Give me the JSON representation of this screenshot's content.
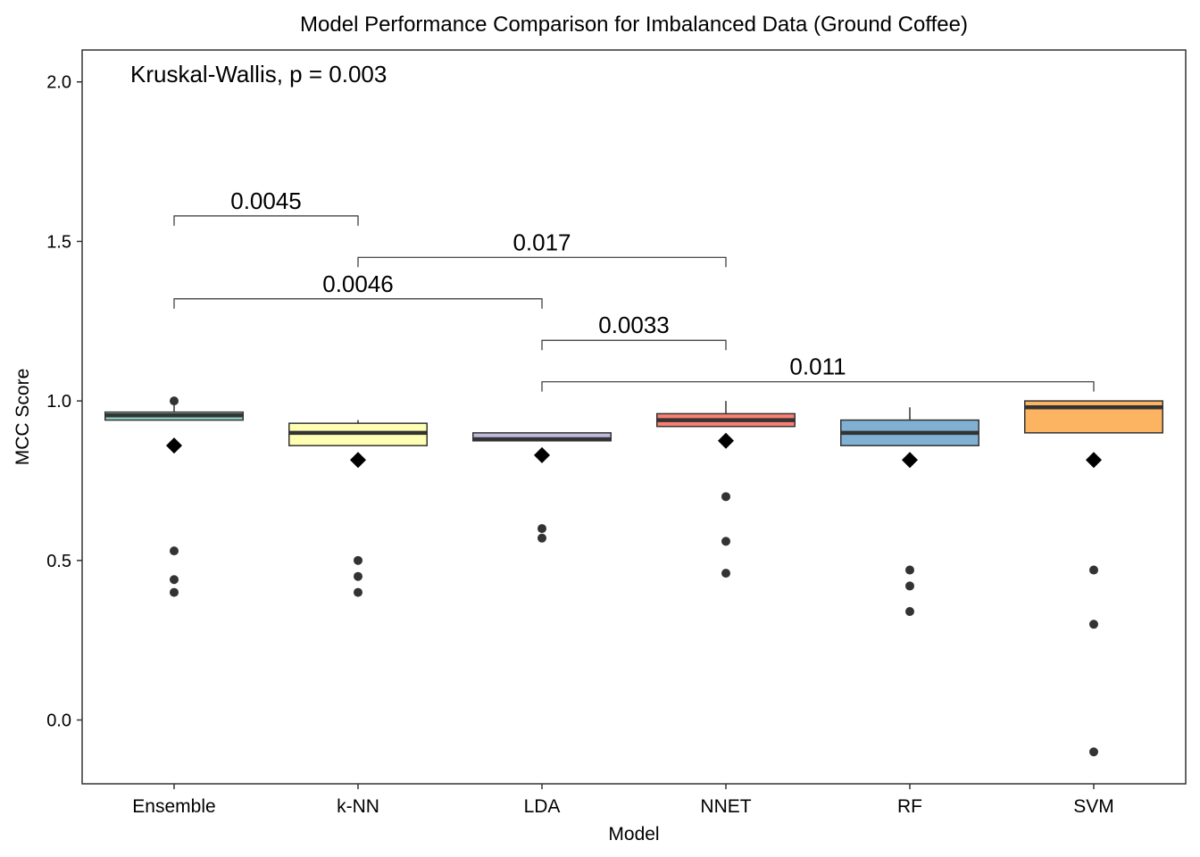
{
  "chart_data": {
    "type": "box",
    "title": "Model Performance Comparison for Imbalanced Data (Ground Coffee)",
    "xlabel": "Model",
    "ylabel": "MCC Score",
    "ylim": [
      -0.2,
      2.1
    ],
    "yticks": [
      0.0,
      0.5,
      1.0,
      1.5,
      2.0
    ],
    "ytick_labels": [
      "0.0",
      "0.5",
      "1.0",
      "1.5",
      "2.0"
    ],
    "grid": false,
    "legend": "none",
    "annotation": "Kruskal-Wallis, p = 0.003",
    "categories": [
      "Ensemble",
      "k-NN",
      "LDA",
      "NNET",
      "RF",
      "SVM"
    ],
    "boxes": [
      {
        "category": "Ensemble",
        "color": "#8DD3C7",
        "whisker_low": 0.94,
        "q1": 0.94,
        "median": 0.955,
        "q3": 0.965,
        "whisker_high": 1.0,
        "mean": 0.86,
        "outliers": [
          1.0,
          0.53,
          0.44,
          0.4
        ]
      },
      {
        "category": "k-NN",
        "color": "#FFFFB3",
        "whisker_low": 0.86,
        "q1": 0.86,
        "median": 0.9,
        "q3": 0.93,
        "whisker_high": 0.94,
        "mean": 0.815,
        "outliers": [
          0.5,
          0.45,
          0.4
        ]
      },
      {
        "category": "LDA",
        "color": "#BEBADA",
        "whisker_low": 0.875,
        "q1": 0.875,
        "median": 0.88,
        "q3": 0.9,
        "whisker_high": 0.9,
        "mean": 0.83,
        "outliers": [
          0.6,
          0.57
        ]
      },
      {
        "category": "NNET",
        "color": "#FB8072",
        "whisker_low": 0.92,
        "q1": 0.92,
        "median": 0.94,
        "q3": 0.96,
        "whisker_high": 1.0,
        "mean": 0.875,
        "outliers": [
          0.7,
          0.56,
          0.46
        ]
      },
      {
        "category": "RF",
        "color": "#80B1D3",
        "whisker_low": 0.86,
        "q1": 0.86,
        "median": 0.9,
        "q3": 0.94,
        "whisker_high": 0.98,
        "mean": 0.815,
        "outliers": [
          0.47,
          0.42,
          0.34
        ]
      },
      {
        "category": "SVM",
        "color": "#FDB462",
        "whisker_low": 0.9,
        "q1": 0.9,
        "median": 0.98,
        "q3": 1.0,
        "whisker_high": 1.0,
        "mean": 0.815,
        "outliers": [
          0.47,
          0.3,
          -0.1
        ]
      }
    ],
    "comparisons": [
      {
        "from": "Ensemble",
        "to": "k-NN",
        "y": 1.58,
        "label": "0.0045"
      },
      {
        "from": "k-NN",
        "to": "NNET",
        "y": 1.45,
        "label": "0.017"
      },
      {
        "from": "Ensemble",
        "to": "LDA",
        "y": 1.32,
        "label": "0.0046"
      },
      {
        "from": "LDA",
        "to": "NNET",
        "y": 1.19,
        "label": "0.0033"
      },
      {
        "from": "LDA",
        "to": "SVM",
        "y": 1.06,
        "label": "0.011"
      }
    ]
  }
}
